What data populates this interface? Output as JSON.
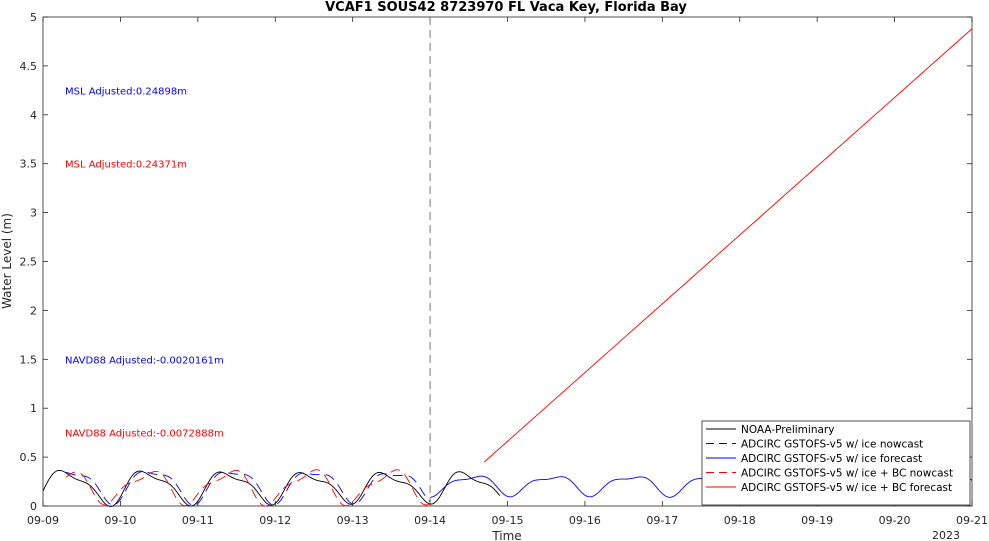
{
  "chart_data": {
    "type": "line",
    "title": "VCAF1 SOUS42 8723970 FL Vaca Key, Florida Bay",
    "xlabel": "Time",
    "ylabel": "Water Level (m)",
    "x_ticks": [
      "09-09",
      "09-10",
      "09-11",
      "09-12",
      "09-13",
      "09-14",
      "09-15",
      "09-16",
      "09-17",
      "09-18",
      "09-19",
      "09-20",
      "09-21"
    ],
    "x_year_label": "2023",
    "xlim_days": [
      0,
      12
    ],
    "ylim": [
      0,
      5
    ],
    "y_ticks": [
      "0",
      "0.5",
      "1",
      "1.5",
      "2",
      "2.5",
      "3",
      "3.5",
      "4",
      "4.5",
      "5"
    ],
    "nowcast_end_marker": "09-14",
    "annotations": [
      {
        "text": "MSL Adjusted:0.24898m",
        "color": "#0000ff",
        "y": 4.25
      },
      {
        "text": "MSL Adjusted:0.24371m",
        "color": "#ff0000",
        "y": 3.5
      },
      {
        "text": "NAVD88 Adjusted:-0.0020161m",
        "color": "#0000ff",
        "y": 1.5
      },
      {
        "text": "NAVD88 Adjusted:-0.0072888m",
        "color": "#ff0000",
        "y": 0.75
      }
    ],
    "legend_position": "bottom-right",
    "series": [
      {
        "name": "NOAA-Preliminary",
        "color": "#000000",
        "dash": "solid",
        "x_range_days": [
          0,
          5.9
        ],
        "mean": 0.2,
        "amp": 0.15
      },
      {
        "name": "ADCIRC GSTOFS-v5 w/ ice nowcast",
        "color": "#0000ff",
        "dash": "dashed",
        "x_range_days": [
          0.3,
          5.0
        ],
        "mean": 0.22,
        "amp": 0.15
      },
      {
        "name": "ADCIRC GSTOFS-v5 w/ ice forecast",
        "color": "#0000ff",
        "dash": "solid",
        "x_range_days": [
          5.0,
          12.0
        ],
        "mean": 0.22,
        "amp": 0.1
      },
      {
        "name": "ADCIRC GSTOFS-v5 w/ ice + BC nowcast",
        "color": "#ff0000",
        "dash": "dashed",
        "x_range_days": [
          0.3,
          5.0
        ],
        "mean": 0.2,
        "amp": 0.15
      },
      {
        "name": "ADCIRC GSTOFS-v5 w/ ice + BC forecast",
        "color": "#ff0000",
        "dash": "solid",
        "x_range_days": [
          5.7,
          12.0
        ],
        "y_start": 0.45,
        "y_end": 4.88
      }
    ]
  }
}
